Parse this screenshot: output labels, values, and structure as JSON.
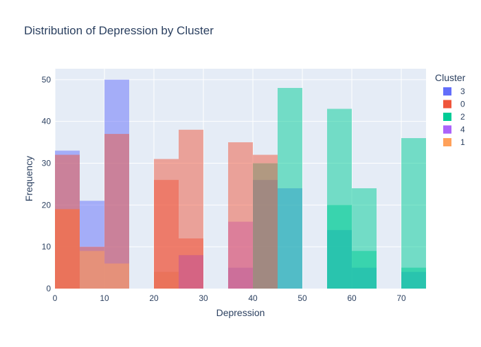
{
  "chart_data": {
    "type": "bar",
    "barmode": "overlay",
    "title": "Distribution of Depression by Cluster",
    "xlabel": "Depression",
    "ylabel": "Frequency",
    "xlim": [
      0,
      75
    ],
    "ylim": [
      0,
      52.6
    ],
    "xticks": [
      0,
      10,
      20,
      30,
      40,
      50,
      60,
      70
    ],
    "yticks": [
      0,
      10,
      20,
      30,
      40,
      50
    ],
    "bin_width": 5,
    "grid": true,
    "legend": {
      "title": "Cluster",
      "position": "right"
    },
    "series": [
      {
        "name": "3",
        "color": "#636efa",
        "bins": [
          {
            "x0": 0,
            "x1": 5,
            "value": 33
          },
          {
            "x0": 5,
            "x1": 10,
            "value": 21
          },
          {
            "x0": 10,
            "x1": 15,
            "value": 50
          },
          {
            "x0": 20,
            "x1": 25,
            "value": 4
          },
          {
            "x0": 25,
            "x1": 30,
            "value": 8
          },
          {
            "x0": 35,
            "x1": 40,
            "value": 5
          },
          {
            "x0": 40,
            "x1": 45,
            "value": 26
          },
          {
            "x0": 45,
            "x1": 50,
            "value": 24
          },
          {
            "x0": 55,
            "x1": 60,
            "value": 14
          },
          {
            "x0": 60,
            "x1": 65,
            "value": 5
          },
          {
            "x0": 70,
            "x1": 75,
            "value": 4
          }
        ]
      },
      {
        "name": "0",
        "color": "#ef553b",
        "bins": [
          {
            "x0": 0,
            "x1": 5,
            "value": 19
          },
          {
            "x0": 5,
            "x1": 10,
            "value": 10
          },
          {
            "x0": 10,
            "x1": 15,
            "value": 37
          },
          {
            "x0": 20,
            "x1": 25,
            "value": 26
          },
          {
            "x0": 25,
            "x1": 30,
            "value": 12
          }
        ]
      },
      {
        "name": "2",
        "color": "#00cc96",
        "bins": [
          {
            "x0": 40,
            "x1": 45,
            "value": 30
          },
          {
            "x0": 45,
            "x1": 50,
            "value": 48
          },
          {
            "x0": 55,
            "x1": 60,
            "value": 43
          },
          {
            "x0": 60,
            "x1": 65,
            "value": 24
          },
          {
            "x0": 70,
            "x1": 75,
            "value": 36
          }
        ]
      },
      {
        "name": "4",
        "color": "#ab63fa",
        "bins": [
          {
            "x0": 25,
            "x1": 30,
            "value": 8
          },
          {
            "x0": 35,
            "x1": 40,
            "value": 16
          }
        ]
      },
      {
        "name": "1",
        "color": "#ffa15a",
        "bins": [
          {
            "x0": 0,
            "x1": 5,
            "value": 19
          },
          {
            "x0": 5,
            "x1": 10,
            "value": 9
          },
          {
            "x0": 10,
            "x1": 15,
            "value": 6
          },
          {
            "x0": 20,
            "x1": 25,
            "value": 4
          }
        ]
      }
    ],
    "overlay_bins": [
      {
        "x0": 0,
        "x1": 5,
        "value": 32,
        "color": "#ef553b"
      },
      {
        "x0": 20,
        "x1": 25,
        "value": 31,
        "color": "#ef553b"
      },
      {
        "x0": 25,
        "x1": 30,
        "value": 38,
        "color": "#ef553b"
      },
      {
        "x0": 35,
        "x1": 40,
        "value": 35,
        "color": "#ef553b"
      },
      {
        "x0": 40,
        "x1": 45,
        "value": 32,
        "color": "#ef553b"
      },
      {
        "x0": 55,
        "x1": 60,
        "value": 20,
        "color": "#00cc96"
      },
      {
        "x0": 60,
        "x1": 65,
        "value": 9,
        "color": "#00cc96"
      },
      {
        "x0": 70,
        "x1": 75,
        "value": 5,
        "color": "#00cc96"
      }
    ],
    "style": {
      "plot_bg": "#e5ecf6",
      "grid_color": "#ffffff",
      "text_color": "#2a3f5f",
      "bar_opacity": 0.5
    }
  }
}
